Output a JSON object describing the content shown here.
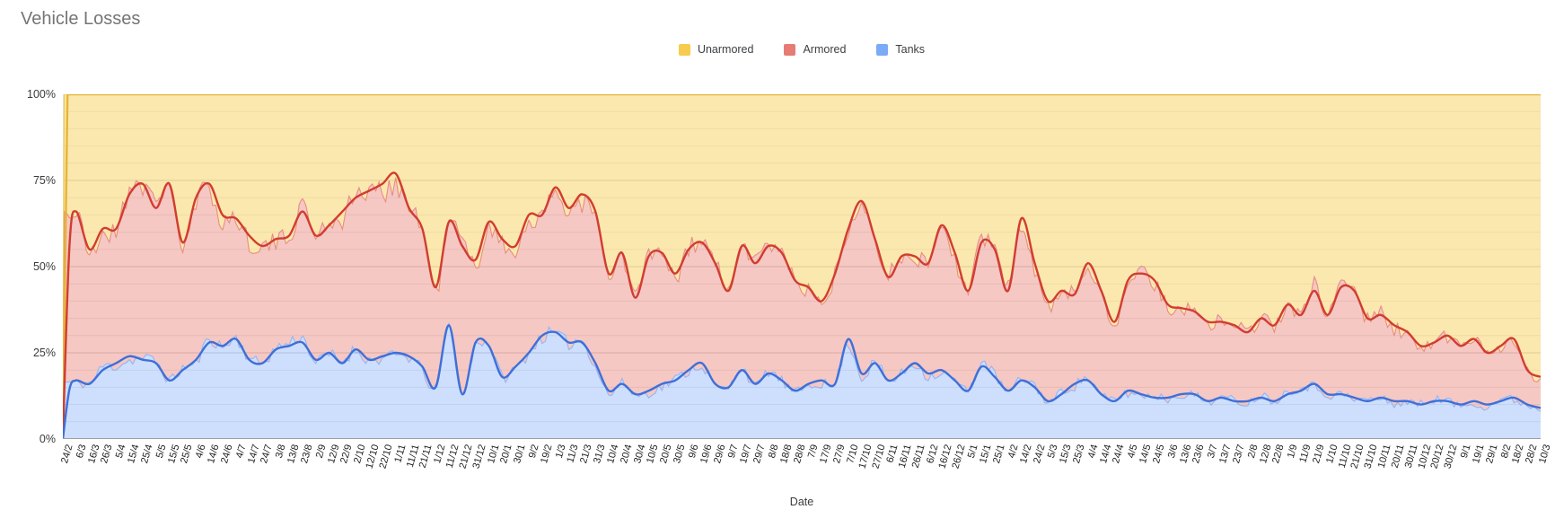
{
  "title": "Vehicle Losses",
  "legend": {
    "items": [
      {
        "label": "Unarmored",
        "color": "#f7cb4d"
      },
      {
        "label": "Armored",
        "color": "#e67c73"
      },
      {
        "label": "Tanks",
        "color": "#7baaf7"
      }
    ]
  },
  "axes": {
    "y_ticks": [
      "100%",
      "75%",
      "50%",
      "25%",
      "0%"
    ],
    "x_title": "Date",
    "grid": {
      "minor_color": "#e9e9e9",
      "major_color": "#cccccc",
      "axis_color": "#9e9e9e"
    }
  },
  "chart_data": {
    "type": "area",
    "stacked": "percent",
    "title": "Vehicle Losses",
    "xlabel": "Date",
    "ylabel": "",
    "ylim": [
      0,
      100
    ],
    "legend_position": "top-center",
    "note": "100% stacked area of vehicle-loss shares; each series shows a thin raw daily line and a thick smoothed trend line. Values below are the smoothed cumulative stack boundaries (%) read at each axis tick: Tanks boundary = Tanks share; Armored boundary = Tanks + Armored share; Unarmored fills up to 100%.",
    "x": [
      "24/2",
      "6/3",
      "16/3",
      "26/3",
      "5/4",
      "15/4",
      "25/4",
      "5/5",
      "15/5",
      "25/5",
      "4/6",
      "14/6",
      "24/6",
      "4/7",
      "14/7",
      "24/7",
      "3/8",
      "13/8",
      "23/8",
      "2/9",
      "12/9",
      "22/9",
      "2/10",
      "12/10",
      "22/10",
      "1/11",
      "11/11",
      "21/11",
      "1/12",
      "11/12",
      "21/12",
      "31/12",
      "10/1",
      "20/1",
      "30/1",
      "9/2",
      "19/2",
      "1/3",
      "11/3",
      "21/3",
      "31/3",
      "10/4",
      "20/4",
      "30/4",
      "10/5",
      "20/5",
      "30/5",
      "9/6",
      "19/6",
      "29/6",
      "9/7",
      "19/7",
      "29/7",
      "8/8",
      "18/8",
      "28/8",
      "7/9",
      "17/9",
      "27/9",
      "7/10",
      "17/10",
      "27/10",
      "6/11",
      "16/11",
      "26/11",
      "6/12",
      "16/12",
      "26/12",
      "5/1",
      "15/1",
      "25/1",
      "4/2",
      "14/2",
      "24/2",
      "5/3",
      "15/3",
      "25/3",
      "4/4",
      "14/4",
      "24/4",
      "4/5",
      "14/5",
      "24/5",
      "3/6",
      "13/6",
      "23/6",
      "3/7",
      "13/7",
      "23/7",
      "2/8",
      "12/8",
      "22/8",
      "1/9",
      "11/9",
      "21/9",
      "1/10",
      "11/10",
      "21/10",
      "31/10",
      "10/11",
      "20/11",
      "30/11",
      "10/12",
      "20/12",
      "30/12",
      "9/1",
      "19/1",
      "29/1",
      "8/2",
      "18/2",
      "28/2",
      "10/3"
    ],
    "series": [
      {
        "name": "Tanks",
        "raw_line_color": "#8fb2f2",
        "trend_line_color": "#3f6fd8",
        "fill_color": "#7baaf7",
        "fill_opacity": 0.38,
        "cum_values": [
          0,
          17,
          16,
          20,
          22,
          24,
          23,
          22,
          17,
          20,
          23,
          28,
          27,
          29,
          23,
          22,
          26,
          27,
          28,
          23,
          25,
          22,
          26,
          23,
          24,
          25,
          24,
          21,
          15,
          33,
          13,
          28,
          27,
          18,
          21,
          25,
          30,
          31,
          28,
          28,
          22,
          14,
          16,
          13,
          14,
          16,
          17,
          20,
          22,
          16,
          15,
          20,
          16,
          19,
          17,
          14,
          16,
          17,
          16,
          29,
          19,
          22,
          17,
          19,
          22,
          19,
          20,
          17,
          14,
          21,
          18,
          14,
          17,
          15,
          11,
          13,
          16,
          17,
          13,
          11,
          14,
          13,
          12,
          12,
          13,
          13,
          11,
          12,
          11,
          11,
          12,
          11,
          13,
          14,
          16,
          13,
          13,
          12,
          11,
          12,
          11,
          11,
          10,
          11,
          11,
          10,
          11,
          10,
          11,
          12,
          10,
          9
        ]
      },
      {
        "name": "Armored",
        "raw_line_color": "#e6897e",
        "trend_line_color": "#d13d2f",
        "fill_color": "#e67c73",
        "fill_opacity": 0.42,
        "cum_values": [
          0,
          66,
          55,
          61,
          61,
          71,
          74,
          67,
          74,
          57,
          70,
          74,
          65,
          64,
          59,
          56,
          58,
          59,
          66,
          59,
          62,
          66,
          70,
          72,
          74,
          77,
          67,
          61,
          44,
          63,
          56,
          52,
          63,
          58,
          56,
          65,
          65,
          73,
          67,
          71,
          66,
          48,
          54,
          41,
          53,
          54,
          48,
          55,
          57,
          51,
          43,
          56,
          51,
          56,
          54,
          46,
          44,
          40,
          48,
          61,
          69,
          58,
          47,
          53,
          53,
          51,
          62,
          54,
          43,
          57,
          55,
          43,
          64,
          51,
          40,
          43,
          42,
          51,
          43,
          34,
          46,
          48,
          46,
          39,
          38,
          37,
          34,
          34,
          33,
          31,
          35,
          33,
          39,
          36,
          43,
          36,
          44,
          43,
          35,
          36,
          33,
          31,
          27,
          28,
          30,
          27,
          29,
          25,
          27,
          29,
          20,
          18
        ]
      },
      {
        "name": "Unarmored",
        "raw_line_color": "#f2c94e",
        "trend_line_color": "#e5b43c",
        "fill_color": "#f7cb4d",
        "fill_opacity": 0.45,
        "cum_value": 100
      }
    ]
  }
}
